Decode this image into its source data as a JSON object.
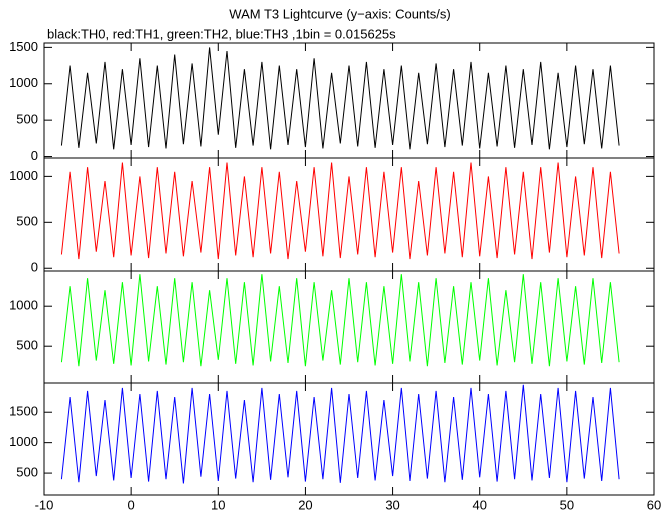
{
  "chart_data": [
    {
      "type": "line",
      "title": "WAM T3 Lightcurve (y−axis: Counts/s)",
      "subtitle": "black:TH0, red:TH1, green:TH2, blue:TH3 ,1bin = 0.015625s",
      "color": "#000000",
      "xlim": [
        -10,
        60
      ],
      "ylim": [
        -20,
        1560
      ],
      "yticks": [
        0,
        500,
        1000,
        1500
      ],
      "x": [
        -8,
        -7,
        -6,
        -5,
        -4,
        -3,
        -2,
        -1,
        0,
        1,
        2,
        3,
        4,
        5,
        6,
        7,
        8,
        9,
        10,
        11,
        12,
        13,
        14,
        15,
        16,
        17,
        18,
        19,
        20,
        21,
        22,
        23,
        24,
        25,
        26,
        27,
        28,
        29,
        30,
        31,
        32,
        33,
        34,
        35,
        36,
        37,
        38,
        39,
        40,
        41,
        42,
        43,
        44,
        45,
        46,
        47,
        48,
        49,
        50,
        51,
        52,
        53,
        54,
        55,
        56
      ],
      "values": [
        150,
        1250,
        120,
        1150,
        180,
        1300,
        100,
        1200,
        160,
        1350,
        130,
        1250,
        110,
        1400,
        170,
        1280,
        140,
        1500,
        300,
        1450,
        120,
        1200,
        150,
        1300,
        100,
        1250,
        160,
        1200,
        130,
        1350,
        110,
        1150,
        180,
        1250,
        140,
        1300,
        120,
        1200,
        160,
        1250,
        100,
        1150,
        170,
        1280,
        130,
        1200,
        150,
        1300,
        110,
        1150,
        140,
        1250,
        120,
        1200,
        160,
        1300,
        100,
        1150,
        130,
        1250,
        170,
        1200,
        110,
        1250,
        150
      ]
    },
    {
      "type": "line",
      "color": "#ff0000",
      "xlim": [
        -10,
        60
      ],
      "ylim": [
        -30,
        1200
      ],
      "yticks": [
        0,
        500,
        1000
      ],
      "x": [
        -8,
        -7,
        -6,
        -5,
        -4,
        -3,
        -2,
        -1,
        0,
        1,
        2,
        3,
        4,
        5,
        6,
        7,
        8,
        9,
        10,
        11,
        12,
        13,
        14,
        15,
        16,
        17,
        18,
        19,
        20,
        21,
        22,
        23,
        24,
        25,
        26,
        27,
        28,
        29,
        30,
        31,
        32,
        33,
        34,
        35,
        36,
        37,
        38,
        39,
        40,
        41,
        42,
        43,
        44,
        45,
        46,
        47,
        48,
        49,
        50,
        51,
        52,
        53,
        54,
        55,
        56
      ],
      "values": [
        150,
        1050,
        100,
        1100,
        180,
        950,
        120,
        1150,
        140,
        1000,
        110,
        1100,
        160,
        1050,
        130,
        950,
        170,
        1100,
        100,
        1150,
        140,
        1000,
        120,
        1100,
        160,
        1050,
        100,
        950,
        180,
        1100,
        130,
        1150,
        110,
        1000,
        150,
        1100,
        120,
        1050,
        170,
        1100,
        100,
        950,
        140,
        1100,
        160,
        1050,
        120,
        1150,
        130,
        1000,
        110,
        1100,
        150,
        1050,
        100,
        1100,
        170,
        1150,
        120,
        1000,
        140,
        1100,
        110,
        1050,
        160
      ]
    },
    {
      "type": "line",
      "color": "#00ff00",
      "xlim": [
        -10,
        60
      ],
      "ylim": [
        40,
        1440
      ],
      "yticks": [
        500,
        1000
      ],
      "x": [
        -8,
        -7,
        -6,
        -5,
        -4,
        -3,
        -2,
        -1,
        0,
        1,
        2,
        3,
        4,
        5,
        6,
        7,
        8,
        9,
        10,
        11,
        12,
        13,
        14,
        15,
        16,
        17,
        18,
        19,
        20,
        21,
        22,
        23,
        24,
        25,
        26,
        27,
        28,
        29,
        30,
        31,
        32,
        33,
        34,
        35,
        36,
        37,
        38,
        39,
        40,
        41,
        42,
        43,
        44,
        45,
        46,
        47,
        48,
        49,
        50,
        51,
        52,
        53,
        54,
        55,
        56
      ],
      "values": [
        300,
        1250,
        250,
        1350,
        320,
        1200,
        280,
        1300,
        260,
        1400,
        310,
        1250,
        270,
        1350,
        300,
        1300,
        250,
        1200,
        330,
        1350,
        280,
        1300,
        260,
        1400,
        310,
        1250,
        290,
        1350,
        250,
        1300,
        320,
        1200,
        270,
        1350,
        300,
        1300,
        260,
        1250,
        280,
        1400,
        310,
        1300,
        250,
        1350,
        290,
        1250,
        270,
        1300,
        320,
        1350,
        260,
        1200,
        300,
        1400,
        280,
        1300,
        250,
        1350,
        310,
        1250,
        270,
        1350,
        290,
        1300,
        300
      ]
    },
    {
      "type": "line",
      "color": "#0000ff",
      "xlim": [
        -10,
        60
      ],
      "ylim": [
        140,
        1980
      ],
      "yticks": [
        500,
        1000,
        1500
      ],
      "xticks": [
        -10,
        0,
        10,
        20,
        30,
        40,
        50,
        60
      ],
      "x": [
        -8,
        -7,
        -6,
        -5,
        -4,
        -3,
        -2,
        -1,
        0,
        1,
        2,
        3,
        4,
        5,
        6,
        7,
        8,
        9,
        10,
        11,
        12,
        13,
        14,
        15,
        16,
        17,
        18,
        19,
        20,
        21,
        22,
        23,
        24,
        25,
        26,
        27,
        28,
        29,
        30,
        31,
        32,
        33,
        34,
        35,
        36,
        37,
        38,
        39,
        40,
        41,
        42,
        43,
        44,
        45,
        46,
        47,
        48,
        49,
        50,
        51,
        52,
        53,
        54,
        55,
        56
      ],
      "values": [
        400,
        1750,
        350,
        1850,
        450,
        1700,
        380,
        1900,
        420,
        1800,
        360,
        1850,
        400,
        1750,
        330,
        1900,
        440,
        1800,
        370,
        1850,
        410,
        1700,
        350,
        1900,
        390,
        1800,
        430,
        1850,
        360,
        1750,
        400,
        1900,
        340,
        1800,
        420,
        1850,
        380,
        1700,
        450,
        1900,
        370,
        1800,
        410,
        1850,
        350,
        1750,
        390,
        1900,
        430,
        1800,
        360,
        1850,
        400,
        1950,
        380,
        1800,
        420,
        1900,
        350,
        1850,
        410,
        1750,
        370,
        1900,
        400
      ]
    }
  ]
}
